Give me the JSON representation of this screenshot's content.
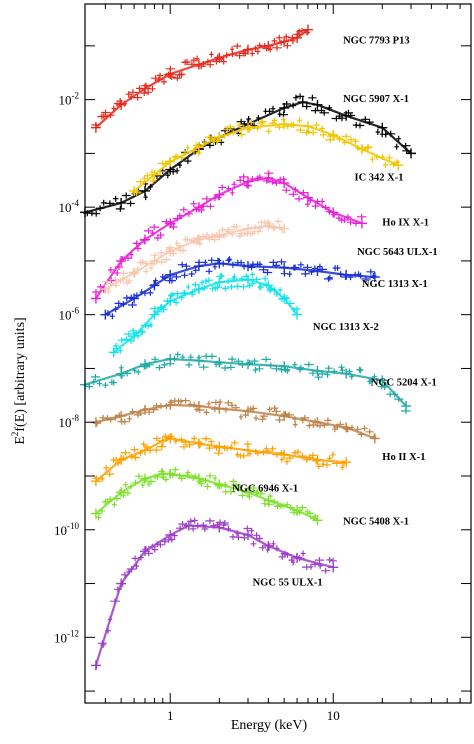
{
  "chart_data": {
    "type": "scatter",
    "xlabel": "Energy (keV)",
    "ylabel": "E²f(E) [arbitrary units]",
    "ylabel_base": "E",
    "ylabel_sup": "2",
    "ylabel_rest": "f(E) [arbitrary units]",
    "xscale": "log",
    "yscale": "log",
    "xlim": [
      0.3,
      70
    ],
    "ylim": [
      6e-14,
      0.6
    ],
    "xticks": [
      {
        "value": 1,
        "label": "1"
      },
      {
        "value": 10,
        "label": "10"
      }
    ],
    "yticks": [
      {
        "value": 0.01,
        "base": "10",
        "exp": "-2"
      },
      {
        "value": 0.0001,
        "base": "10",
        "exp": "-4"
      },
      {
        "value": 1e-06,
        "base": "10",
        "exp": "-6"
      },
      {
        "value": 1e-08,
        "base": "10",
        "exp": "-8"
      },
      {
        "value": 1e-10,
        "base": "10",
        "exp": "-10"
      },
      {
        "value": 1e-12,
        "base": "10",
        "exp": "-12"
      }
    ],
    "grid": false,
    "legend": "none",
    "series": [
      {
        "name": "NGC 7793 P13",
        "color": "#e8291c",
        "label_at": [
          11.5,
          0.11
        ],
        "x": [
          0.35,
          0.5,
          0.7,
          1.0,
          1.5,
          2.0,
          3.0,
          4.0,
          5.0,
          6.0,
          7.0
        ],
        "y": [
          0.003,
          0.008,
          0.016,
          0.03,
          0.045,
          0.06,
          0.085,
          0.1,
          0.12,
          0.14,
          0.2
        ]
      },
      {
        "name": "NGC 5907 X-1",
        "color": "#000000",
        "label_at": [
          11.5,
          0.009
        ],
        "x": [
          0.3,
          0.5,
          0.7,
          1.0,
          1.5,
          2.0,
          3.0,
          5.0,
          6.5,
          8.0,
          12.0,
          20.0,
          30.0
        ],
        "y": [
          8e-05,
          0.00012,
          0.0002,
          0.0005,
          0.0012,
          0.002,
          0.0035,
          0.007,
          0.009,
          0.008,
          0.005,
          0.003,
          0.001
        ]
      },
      {
        "name": "IC 342 X-1",
        "color": "#f2c500",
        "label_at": [
          13.5,
          0.00031
        ],
        "x": [
          0.6,
          0.8,
          1.0,
          1.5,
          2.0,
          3.0,
          5.0,
          7.0,
          10.0,
          15.0,
          25.0
        ],
        "y": [
          0.0002,
          0.0004,
          0.0007,
          0.0013,
          0.002,
          0.003,
          0.0035,
          0.0032,
          0.0022,
          0.0012,
          0.0006
        ]
      },
      {
        "name": "Ho IX X-1",
        "color": "#e91fd8",
        "label_at": [
          20,
          4.6e-05
        ],
        "x": [
          0.35,
          0.5,
          0.7,
          1.0,
          1.5,
          2.0,
          3.0,
          4.0,
          5.0,
          7.0,
          10.0,
          15.0
        ],
        "y": [
          2e-06,
          1e-05,
          2.5e-05,
          5e-05,
          0.0001,
          0.00017,
          0.0003,
          0.00035,
          0.00028,
          0.00015,
          8e-05,
          5e-05
        ]
      },
      {
        "name": "NGC 5643 ULX-1",
        "color": "#f7c7b0",
        "label_at": [
          14,
          1.3e-05
        ],
        "x": [
          0.4,
          0.6,
          0.8,
          1.0,
          1.5,
          2.0,
          3.0,
          4.0,
          5.0
        ],
        "y": [
          3e-06,
          6e-06,
          1e-05,
          1.5e-05,
          2.5e-05,
          3e-05,
          4e-05,
          4.5e-05,
          4e-05
        ]
      },
      {
        "name": "NGC 1313 X-1",
        "color": "#1a2fd8",
        "label_at": [
          15,
          3.3e-06
        ],
        "x": [
          0.4,
          0.6,
          0.8,
          1.0,
          1.5,
          2.0,
          3.0,
          5.0,
          8.0,
          12.0,
          18.0
        ],
        "y": [
          1e-06,
          2e-06,
          3.5e-06,
          5.5e-06,
          8e-06,
          9e-06,
          8e-06,
          7.5e-06,
          6.5e-06,
          5.5e-06,
          5e-06
        ]
      },
      {
        "name": "NGC 1313 X-2",
        "color": "#12e3ea",
        "label_at": [
          7.5,
          5.2e-07
        ],
        "x": [
          0.45,
          0.6,
          0.8,
          1.0,
          1.5,
          2.0,
          3.0,
          4.0,
          5.0,
          6.0
        ],
        "y": [
          2e-07,
          4e-07,
          1e-06,
          1.8e-06,
          3e-06,
          4e-06,
          4.5e-06,
          3.5e-06,
          2e-06,
          1e-06
        ]
      },
      {
        "name": "NGC 5204 X-1",
        "color": "#22a9a5",
        "label_at": [
          17,
          4.8e-08
        ],
        "x": [
          0.3,
          0.5,
          0.7,
          1.0,
          1.5,
          2.0,
          3.0,
          5.0,
          8.0,
          12.0,
          20.0,
          28.0
        ],
        "y": [
          5e-08,
          8e-08,
          1.2e-07,
          1.5e-07,
          1.4e-07,
          1.3e-07,
          1.2e-07,
          1.1e-07,
          9e-08,
          8e-08,
          6e-08,
          2e-08
        ]
      },
      {
        "name": "Ho II X-1",
        "color": "#c0834a",
        "label_at": [
          20,
          2e-09
        ],
        "x": [
          0.35,
          0.5,
          0.7,
          1.0,
          1.5,
          2.0,
          3.0,
          5.0,
          8.0,
          12.0,
          18.0
        ],
        "y": [
          1e-08,
          1.3e-08,
          1.7e-08,
          2.1e-08,
          2e-08,
          1.8e-08,
          1.6e-08,
          1.3e-08,
          1e-08,
          8e-09,
          5e-09
        ]
      },
      {
        "name": "NGC 6946 X-1",
        "color": "#ffa000",
        "label_at": [
          2.4,
          5.2e-10
        ],
        "x": [
          0.35,
          0.5,
          0.7,
          0.9,
          1.0,
          1.5,
          2.0,
          3.0,
          5.0,
          8.0,
          12.0
        ],
        "y": [
          8e-10,
          2e-09,
          3e-09,
          4.5e-09,
          5e-09,
          4e-09,
          3.5e-09,
          3e-09,
          2.5e-09,
          2e-09,
          1.8e-09
        ]
      },
      {
        "name": "NGC 5408 X-1",
        "color": "#7ee02a",
        "label_at": [
          11.5,
          1.25e-10
        ],
        "x": [
          0.35,
          0.5,
          0.7,
          0.9,
          1.0,
          1.5,
          2.0,
          3.0,
          4.0,
          6.0,
          8.0
        ],
        "y": [
          2e-10,
          5e-10,
          9e-10,
          1.1e-09,
          1.1e-09,
          9e-10,
          7e-10,
          5e-10,
          3.5e-10,
          2.3e-10,
          1.5e-10
        ]
      },
      {
        "name": "NGC 55 ULX-1",
        "color": "#9c3ec7",
        "label_at": [
          3.2,
          9.2e-12
        ],
        "x": [
          0.35,
          0.5,
          0.7,
          1.0,
          1.3,
          2.0,
          3.0,
          4.0,
          6.0,
          10.0
        ],
        "y": [
          3e-13,
          1e-11,
          4e-11,
          8e-11,
          1.2e-10,
          1.1e-10,
          8e-11,
          5e-11,
          3e-11,
          2e-11
        ]
      }
    ]
  }
}
